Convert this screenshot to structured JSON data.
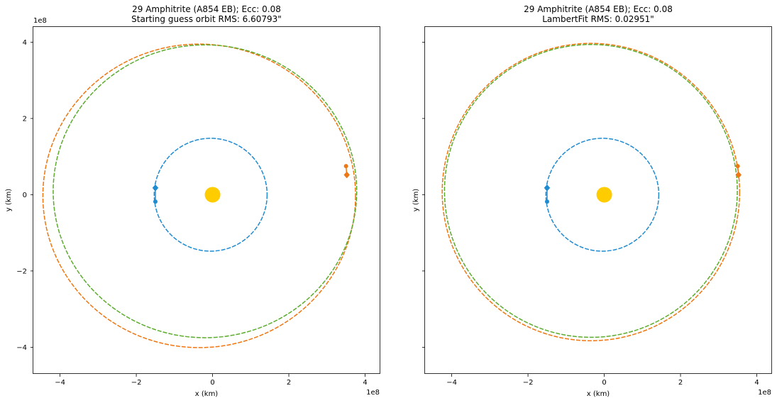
{
  "chart_data": [
    {
      "type": "scatter",
      "title_line1": "29 Amphitrite (A854 EB); Ecc: 0.08",
      "title_line2": "Starting guess orbit RMS: 6.60793\"",
      "xlabel": "x (km)",
      "ylabel": "y (km)",
      "x_scale_label": "1e8",
      "y_scale_label": "1e8",
      "xlim": [
        -4.7,
        4.4
      ],
      "ylim": [
        -4.7,
        4.4
      ],
      "xticks": [
        -4,
        -2,
        0,
        2,
        4
      ],
      "yticks": [
        -4,
        -2,
        0,
        2,
        4
      ],
      "show_y_tick_labels": true,
      "grid": false,
      "sun": {
        "x": 0,
        "y": 0,
        "color": "#ffcc00"
      },
      "orbits": [
        {
          "cx": -0.05,
          "cy": 0.0,
          "rx": 1.48,
          "ry": 1.48,
          "color": "#1f8bd0"
        },
        {
          "cx": -0.35,
          "cy": -0.03,
          "rx": 4.1,
          "ry": 3.98,
          "color": "#ee7711"
        },
        {
          "cx": -0.2,
          "cy": 0.09,
          "rx": 3.98,
          "ry": 3.84,
          "color": "#5cac2d"
        }
      ],
      "earth_points": [
        {
          "x": -1.5,
          "y": 0.18,
          "marker": "diamond",
          "color": "#1f8bd0"
        },
        {
          "x": -1.5,
          "y": -0.18,
          "marker": "circle",
          "color": "#1f8bd0"
        }
      ],
      "asteroid_points": [
        {
          "x": 3.5,
          "y": 0.75,
          "marker": "circle",
          "color": "#ee7711"
        },
        {
          "x": 3.52,
          "y": 0.52,
          "marker": "diamond",
          "color": "#ee7711"
        }
      ]
    },
    {
      "type": "scatter",
      "title_line1": "29 Amphitrite (A854 EB); Ecc: 0.08",
      "title_line2": "LambertFit RMS: 0.02951\"",
      "xlabel": "x (km)",
      "ylabel": "y (km)",
      "x_scale_label": "1e8",
      "y_scale_label": "",
      "xlim": [
        -4.7,
        4.4
      ],
      "ylim": [
        -4.7,
        4.4
      ],
      "xticks": [
        -4,
        -2,
        0,
        2,
        4
      ],
      "yticks": [
        -4,
        -2,
        0,
        2,
        4
      ],
      "show_y_tick_labels": false,
      "grid": false,
      "sun": {
        "x": 0,
        "y": 0,
        "color": "#ffcc00"
      },
      "orbits": [
        {
          "cx": -0.05,
          "cy": 0.0,
          "rx": 1.48,
          "ry": 1.48,
          "color": "#1f8bd0"
        },
        {
          "cx": -0.35,
          "cy": 0.07,
          "rx": 3.9,
          "ry": 3.9,
          "color": "#ee7711"
        },
        {
          "cx": -0.35,
          "cy": 0.1,
          "rx": 3.84,
          "ry": 3.84,
          "color": "#5cac2d"
        }
      ],
      "earth_points": [
        {
          "x": -1.5,
          "y": 0.18,
          "marker": "diamond",
          "color": "#1f8bd0"
        },
        {
          "x": -1.5,
          "y": -0.18,
          "marker": "circle",
          "color": "#1f8bd0"
        }
      ],
      "asteroid_points": [
        {
          "x": 3.5,
          "y": 0.75,
          "marker": "circle",
          "color": "#ee7711"
        },
        {
          "x": 3.52,
          "y": 0.52,
          "marker": "diamond",
          "color": "#ee7711"
        }
      ]
    }
  ]
}
